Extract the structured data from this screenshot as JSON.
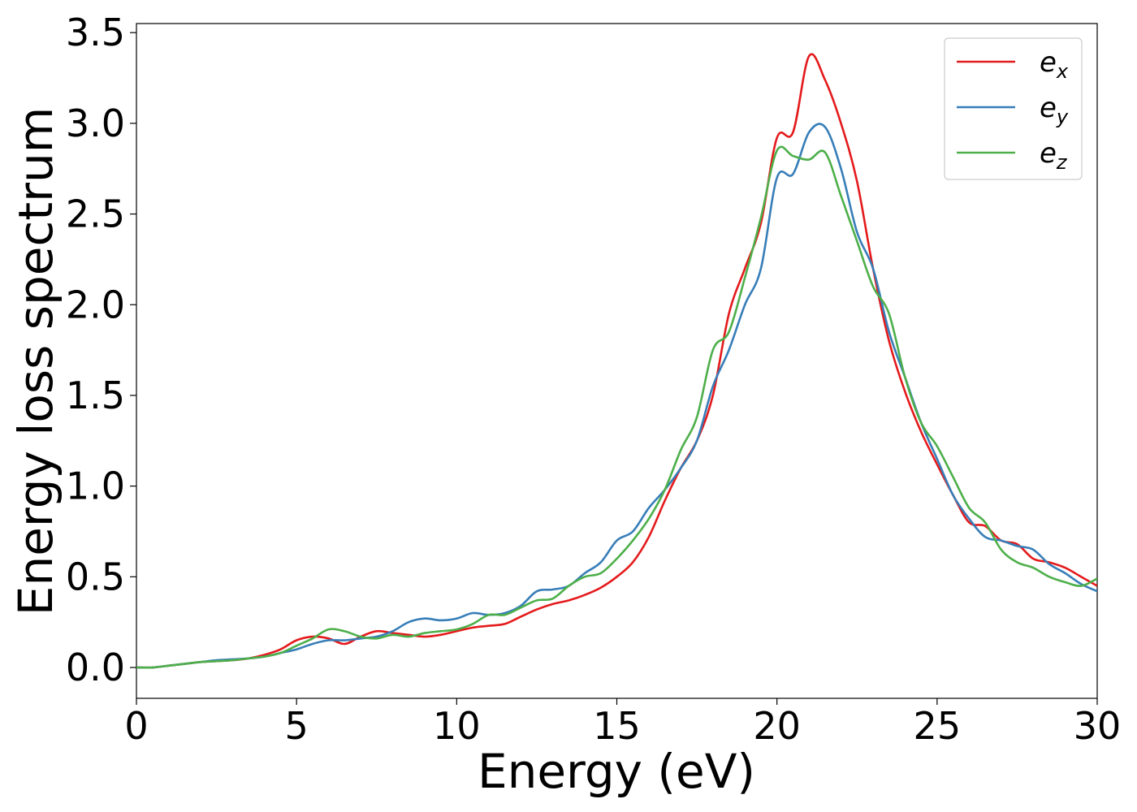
{
  "chart_data": {
    "type": "line",
    "title": "",
    "xlabel": "Energy (eV)",
    "ylabel": "Energy loss spectrum",
    "xlim": [
      0,
      30
    ],
    "ylim": [
      -0.17,
      3.55
    ],
    "xticks": [
      0,
      5,
      10,
      15,
      20,
      25,
      30
    ],
    "xtick_labels": [
      "0",
      "5",
      "10",
      "15",
      "20",
      "25",
      "30"
    ],
    "yticks": [
      0.0,
      0.5,
      1.0,
      1.5,
      2.0,
      2.5,
      3.0,
      3.5
    ],
    "ytick_labels": [
      "0.0",
      "0.5",
      "1.0",
      "1.5",
      "2.0",
      "2.5",
      "3.0",
      "3.5"
    ],
    "grid": false,
    "legend_position": "top-right",
    "series": [
      {
        "name": "e_x",
        "label_base": "e",
        "label_sub": "x",
        "color": "#e41a1c",
        "x": [
          0,
          0.5,
          1,
          1.5,
          2,
          2.5,
          3,
          3.5,
          4,
          4.5,
          5,
          5.5,
          6,
          6.5,
          7,
          7.5,
          8,
          8.5,
          9,
          9.5,
          10,
          10.5,
          11,
          11.5,
          12,
          12.5,
          13,
          13.5,
          14,
          14.5,
          15,
          15.5,
          16,
          16.5,
          17,
          17.5,
          18,
          18.5,
          19,
          19.5,
          20,
          20.5,
          21,
          21.5,
          22,
          22.5,
          23,
          23.5,
          24,
          24.5,
          25,
          25.5,
          26,
          26.5,
          27,
          27.5,
          28,
          28.5,
          29,
          29.5,
          30
        ],
        "y": [
          0,
          0,
          0.01,
          0.02,
          0.03,
          0.035,
          0.04,
          0.05,
          0.07,
          0.1,
          0.15,
          0.17,
          0.16,
          0.13,
          0.17,
          0.2,
          0.19,
          0.18,
          0.17,
          0.18,
          0.2,
          0.22,
          0.23,
          0.24,
          0.28,
          0.32,
          0.35,
          0.37,
          0.4,
          0.44,
          0.5,
          0.58,
          0.72,
          0.92,
          1.1,
          1.25,
          1.5,
          1.95,
          2.2,
          2.45,
          2.92,
          2.95,
          3.37,
          3.24,
          3.0,
          2.68,
          2.2,
          1.8,
          1.52,
          1.3,
          1.12,
          0.95,
          0.8,
          0.78,
          0.7,
          0.68,
          0.6,
          0.58,
          0.55,
          0.5,
          0.45
        ]
      },
      {
        "name": "e_y",
        "label_base": "e",
        "label_sub": "y",
        "color": "#377eb8",
        "x": [
          0,
          0.5,
          1,
          1.5,
          2,
          2.5,
          3,
          3.5,
          4,
          4.5,
          5,
          5.5,
          6,
          6.5,
          7,
          7.5,
          8,
          8.5,
          9,
          9.5,
          10,
          10.5,
          11,
          11.5,
          12,
          12.5,
          13,
          13.5,
          14,
          14.5,
          15,
          15.5,
          16,
          16.5,
          17,
          17.5,
          18,
          18.5,
          19,
          19.5,
          20,
          20.5,
          21,
          21.5,
          22,
          22.5,
          23,
          23.5,
          24,
          24.5,
          25,
          25.5,
          26,
          26.5,
          27,
          27.5,
          28,
          28.5,
          29,
          29.5,
          30
        ],
        "y": [
          0,
          0,
          0.01,
          0.02,
          0.03,
          0.04,
          0.045,
          0.05,
          0.06,
          0.08,
          0.1,
          0.13,
          0.15,
          0.15,
          0.16,
          0.17,
          0.2,
          0.25,
          0.27,
          0.26,
          0.27,
          0.3,
          0.29,
          0.3,
          0.34,
          0.42,
          0.43,
          0.45,
          0.52,
          0.58,
          0.7,
          0.75,
          0.88,
          0.98,
          1.1,
          1.25,
          1.55,
          1.75,
          2.0,
          2.2,
          2.7,
          2.72,
          2.95,
          2.98,
          2.75,
          2.4,
          2.2,
          1.85,
          1.6,
          1.35,
          1.15,
          0.95,
          0.82,
          0.72,
          0.7,
          0.67,
          0.65,
          0.57,
          0.52,
          0.46,
          0.42
        ]
      },
      {
        "name": "e_z",
        "label_base": "e",
        "label_sub": "z",
        "color": "#4daf4a",
        "x": [
          0,
          0.5,
          1,
          1.5,
          2,
          2.5,
          3,
          3.5,
          4,
          4.5,
          5,
          5.5,
          6,
          6.5,
          7,
          7.5,
          8,
          8.5,
          9,
          9.5,
          10,
          10.5,
          11,
          11.5,
          12,
          12.5,
          13,
          13.5,
          14,
          14.5,
          15,
          15.5,
          16,
          16.5,
          17,
          17.5,
          18,
          18.5,
          19,
          19.5,
          20,
          20.5,
          21,
          21.5,
          22,
          22.5,
          23,
          23.5,
          24,
          24.5,
          25,
          25.5,
          26,
          26.5,
          27,
          27.5,
          28,
          28.5,
          29,
          29.5,
          30
        ],
        "y": [
          0,
          0,
          0.01,
          0.02,
          0.03,
          0.035,
          0.04,
          0.05,
          0.06,
          0.08,
          0.12,
          0.16,
          0.21,
          0.2,
          0.17,
          0.16,
          0.18,
          0.17,
          0.19,
          0.2,
          0.21,
          0.24,
          0.29,
          0.29,
          0.33,
          0.37,
          0.38,
          0.45,
          0.5,
          0.52,
          0.6,
          0.7,
          0.82,
          0.98,
          1.2,
          1.38,
          1.75,
          1.85,
          2.15,
          2.48,
          2.85,
          2.82,
          2.8,
          2.84,
          2.6,
          2.35,
          2.1,
          1.95,
          1.6,
          1.35,
          1.22,
          1.05,
          0.88,
          0.8,
          0.65,
          0.58,
          0.55,
          0.5,
          0.47,
          0.45,
          0.49
        ]
      }
    ]
  }
}
